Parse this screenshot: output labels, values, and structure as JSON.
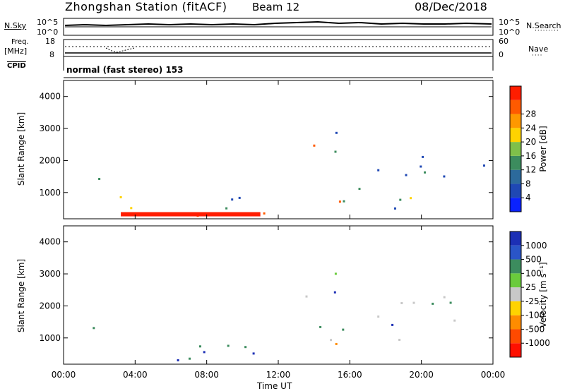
{
  "header": {
    "station": "Zhongshan Station (fitACF)",
    "beam": "Beam 12",
    "date": "08/Dec/2018"
  },
  "top_strips": {
    "nsky": {
      "label": "N.Sky",
      "tick_top": "10^5",
      "tick_bottom": "10^0"
    },
    "nsearch": {
      "label": "N.Search",
      "tick_top": "10^5",
      "tick_bottom": "10^0"
    },
    "freq": {
      "label": "Freq.",
      "unit": "[MHz]",
      "tick_top": "18",
      "tick_bottom": "8"
    },
    "nave": {
      "label": "Nave",
      "tick_top": "60",
      "tick_bottom": "0"
    },
    "cpid": {
      "label": "CPID",
      "value": "normal (fast stereo) 153"
    }
  },
  "chart_data": [
    {
      "type": "heatmap",
      "panel": "power",
      "ylabel": "Slant Range [km]",
      "xlabel": "Time UT",
      "ylim": [
        180,
        4500
      ],
      "xlim_hours": [
        0,
        24
      ],
      "y_ticks": [
        "1000",
        "2000",
        "3000",
        "4000"
      ],
      "x_ticks": [
        "00:00",
        "04:00",
        "08:00",
        "12:00",
        "16:00",
        "20:00",
        "00:00"
      ],
      "colorbar": {
        "label": "Power [dB]",
        "ticks": [
          "4",
          "8",
          "12",
          "16",
          "20",
          "24",
          "28"
        ],
        "colors": [
          "#0a22ff",
          "#1f48b4",
          "#2c6a9c",
          "#3c8c5e",
          "#7fc04a",
          "#ffd300",
          "#ff9800",
          "#ff5a00",
          "#ff1d00"
        ]
      }
    },
    {
      "type": "heatmap",
      "panel": "velocity",
      "ylabel": "Slant Range [km]",
      "xlabel": "Time UT",
      "ylim": [
        180,
        4500
      ],
      "xlim_hours": [
        0,
        24
      ],
      "y_ticks": [
        "1000",
        "2000",
        "3000",
        "4000"
      ],
      "x_ticks": [
        "00:00",
        "04:00",
        "08:00",
        "12:00",
        "16:00",
        "20:00",
        "00:00"
      ],
      "colorbar": {
        "label": "Velocity [m s⁻¹]",
        "ticks": [
          "1000",
          "500",
          "100",
          "25",
          "-25",
          "-100",
          "-500",
          "-1000"
        ],
        "colors": [
          "#1c2fb5",
          "#2a55c8",
          "#3c8c5e",
          "#6acb3c",
          "#c8c8c8",
          "#ffd300",
          "#ff8c00",
          "#ff4a00",
          "#ff1000"
        ]
      }
    }
  ]
}
